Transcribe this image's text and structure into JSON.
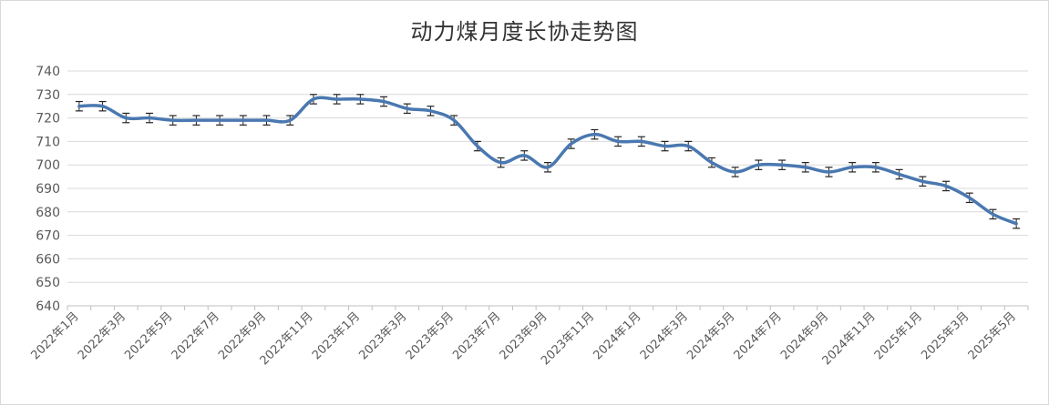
{
  "chart_data": {
    "type": "line",
    "title": "动力煤月度长协走势图",
    "xlabel": "",
    "ylabel": "",
    "ylim": [
      640,
      740
    ],
    "yticks": [
      640,
      650,
      660,
      670,
      680,
      690,
      700,
      710,
      720,
      730,
      740
    ],
    "grid": true,
    "legend": "none",
    "error_bars": true,
    "error_bar_size": 2,
    "line_color": "#4a78b0",
    "x": [
      "2022年1月",
      "2022年2月",
      "2022年3月",
      "2022年4月",
      "2022年5月",
      "2022年6月",
      "2022年7月",
      "2022年8月",
      "2022年9月",
      "2022年10月",
      "2022年11月",
      "2022年12月",
      "2023年1月",
      "2023年2月",
      "2023年3月",
      "2023年4月",
      "2023年5月",
      "2023年6月",
      "2023年7月",
      "2023年8月",
      "2023年9月",
      "2023年10月",
      "2023年11月",
      "2023年12月",
      "2024年1月",
      "2024年2月",
      "2024年3月",
      "2024年4月",
      "2024年5月",
      "2024年6月",
      "2024年7月",
      "2024年8月",
      "2024年9月",
      "2024年10月",
      "2024年11月",
      "2024年12月",
      "2025年1月",
      "2025年2月",
      "2025年3月",
      "2025年4月",
      "2025年5月"
    ],
    "x_tick_labels": [
      "2022年1月",
      "2022年3月",
      "2022年5月",
      "2022年7月",
      "2022年9月",
      "2022年11月",
      "2023年1月",
      "2023年3月",
      "2023年5月",
      "2023年7月",
      "2023年9月",
      "2023年11月",
      "2024年1月",
      "2024年3月",
      "2024年5月",
      "2024年7月",
      "2024年9月",
      "2024年11月",
      "2025年1月",
      "2025年3月",
      "2025年5月"
    ],
    "series": [
      {
        "values": [
          725,
          725,
          720,
          720,
          719,
          719,
          719,
          719,
          719,
          719,
          728,
          728,
          728,
          727,
          724,
          723,
          719,
          708,
          701,
          704,
          699,
          709,
          713,
          710,
          710,
          708,
          708,
          701,
          697,
          700,
          700,
          699,
          697,
          699,
          699,
          696,
          693,
          691,
          686,
          679,
          675
        ]
      }
    ]
  }
}
